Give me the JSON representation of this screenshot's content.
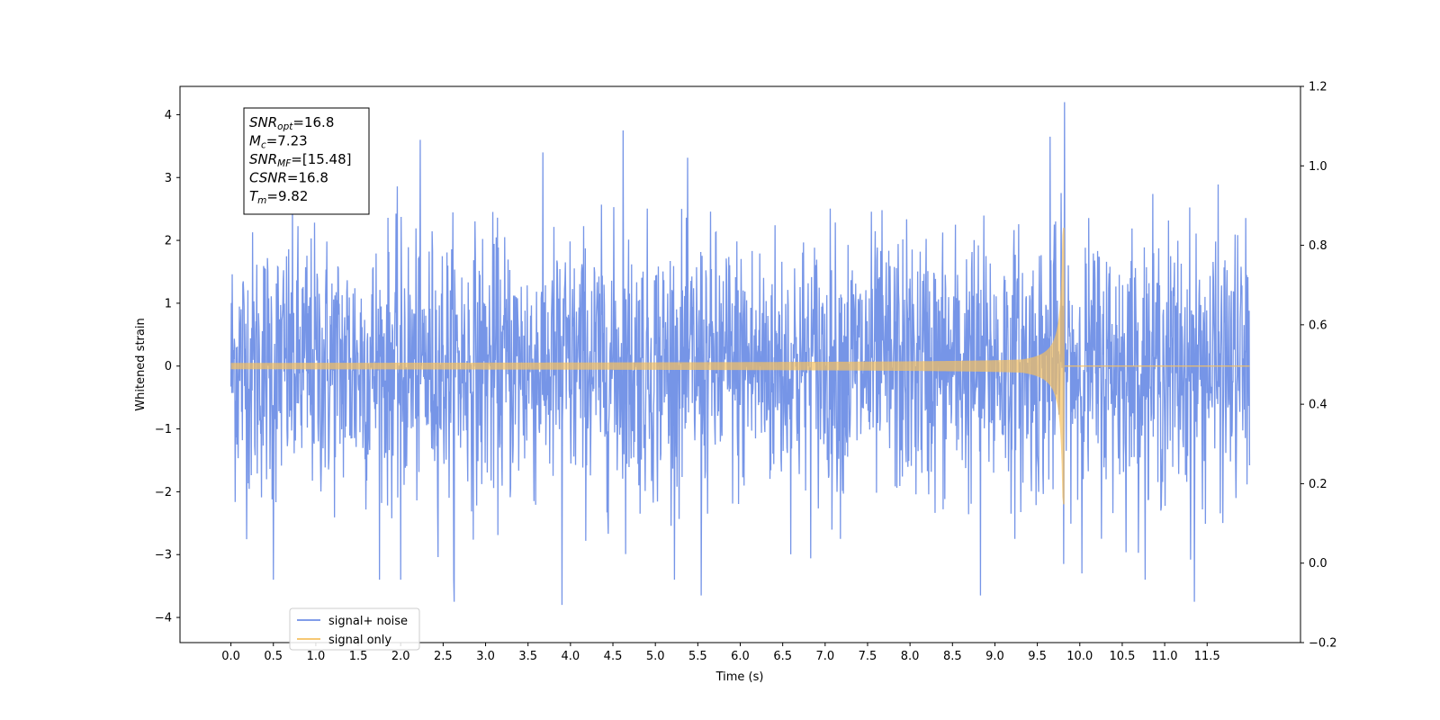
{
  "chart_data": {
    "type": "line",
    "title": "",
    "xlabel": "Time (s)",
    "ylabel": "Whitened strain",
    "xlim": [
      -0.6,
      12.6
    ],
    "ylim": [
      -4.4,
      4.45
    ],
    "y2lim": [
      -0.2,
      1.2
    ],
    "x_ticks": [
      0.0,
      0.5,
      1.0,
      1.5,
      2.0,
      2.5,
      3.0,
      3.5,
      4.0,
      4.5,
      5.0,
      5.5,
      6.0,
      6.5,
      7.0,
      7.5,
      8.0,
      8.5,
      9.0,
      9.5,
      10.0,
      10.5,
      11.0,
      11.5
    ],
    "x_tick_labels": [
      "0.0",
      "0.5",
      "1.0",
      "1.5",
      "2.0",
      "2.5",
      "3.0",
      "3.5",
      "4.0",
      "4.5",
      "5.0",
      "5.5",
      "6.0",
      "6.5",
      "7.0",
      "7.5",
      "8.0",
      "8.5",
      "9.0",
      "9.5",
      "10.0",
      "10.5",
      "11.0",
      "11.5"
    ],
    "y_ticks": [
      -4,
      -3,
      -2,
      -1,
      0,
      1,
      2,
      3,
      4
    ],
    "y_tick_labels": [
      "−4",
      "−3",
      "−2",
      "−1",
      "0",
      "1",
      "2",
      "3",
      "4"
    ],
    "y2_ticks": [
      -0.2,
      0.0,
      0.2,
      0.4,
      0.6,
      0.8,
      1.0,
      1.2
    ],
    "y2_tick_labels": [
      "−0.2",
      "0.0",
      "0.2",
      "0.4",
      "0.6",
      "0.8",
      "1.0",
      "1.2"
    ],
    "grid": false,
    "legend_position": "lower-left",
    "series": [
      {
        "name": "signal+ noise",
        "color": "#6f8fe6",
        "description_values": {
          "t_start": 0.0,
          "t_end": 12.0,
          "typical_range": [
            -2.5,
            2.5
          ],
          "peaks": [
            {
              "x": 9.82,
              "y": 4.2
            },
            {
              "x": 4.62,
              "y": 3.75
            },
            {
              "x": 3.9,
              "y": -3.8
            },
            {
              "x": 2.63,
              "y": -3.75
            },
            {
              "x": 11.35,
              "y": -3.75
            },
            {
              "x": 5.54,
              "y": -3.65
            },
            {
              "x": 8.83,
              "y": -3.65
            },
            {
              "x": 2.23,
              "y": 3.6
            },
            {
              "x": 9.65,
              "y": 3.65
            },
            {
              "x": 0.5,
              "y": -3.4
            },
            {
              "x": 2.0,
              "y": -3.4
            }
          ]
        }
      },
      {
        "name": "signal only",
        "color": "#f5c060",
        "description_values": {
          "t_start": 0.0,
          "t_merger": 9.82,
          "t_end": 12.0,
          "amplitude_at_start": 0.05,
          "amplitude_at_merger": 2.2,
          "post_merger_amplitude": 0.0
        }
      }
    ],
    "annotation": {
      "lines": [
        {
          "sym": "SNR",
          "sub": "opt",
          "val": "=16.8"
        },
        {
          "sym": "M",
          "sub": "c",
          "val": "=7.23"
        },
        {
          "sym": "SNR",
          "sub": "MF",
          "val": "=[15.48]"
        },
        {
          "sym": "CSNR",
          "sub": "",
          "val": "=16.8"
        },
        {
          "sym": "T",
          "sub": "m",
          "val": "=9.82"
        }
      ]
    }
  }
}
